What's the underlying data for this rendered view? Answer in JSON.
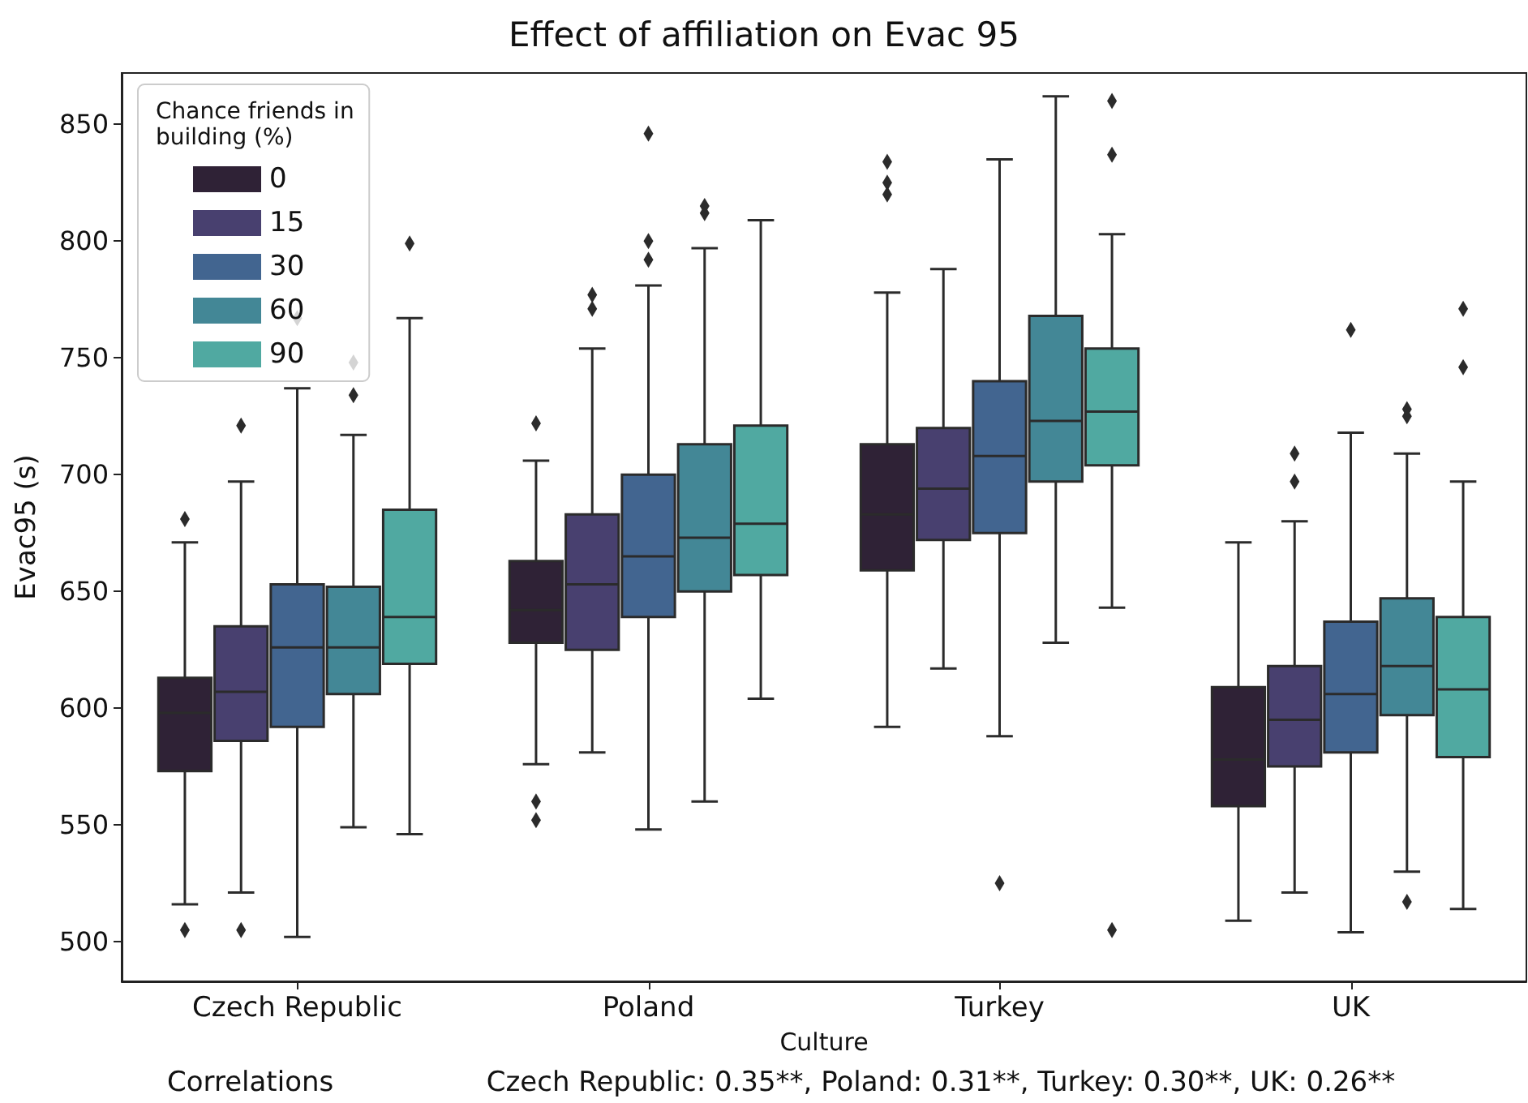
{
  "chart_data": {
    "type": "box",
    "title": "Effect of affiliation on Evac 95",
    "xlabel": "Culture",
    "ylabel": "Evac95 (s)",
    "legend_title": "Chance friends in building (%)",
    "legend": "top left",
    "grid": false,
    "categories": [
      "Czech Republic",
      "Poland",
      "Turkey",
      "UK"
    ],
    "ylim": [
      483,
      872
    ],
    "yticks": [
      500,
      550,
      600,
      650,
      700,
      750,
      800,
      850
    ],
    "annotations": [
      "Correlations",
      "Czech Republic: 0.35**, Poland: 0.31**, Turkey: 0.30**, UK: 0.26**"
    ],
    "series": [
      {
        "name": "0",
        "color": "#2f2236",
        "boxes": [
          {
            "low": 516,
            "q1": 573,
            "median": 598,
            "q3": 613,
            "high": 671,
            "outliers": [
              681,
              505
            ]
          },
          {
            "low": 576,
            "q1": 628,
            "median": 642,
            "q3": 663,
            "high": 706,
            "outliers": [
              722,
              560,
              552
            ]
          },
          {
            "low": 592,
            "q1": 659,
            "median": 683,
            "q3": 713,
            "high": 778,
            "outliers": [
              834,
              825,
              820
            ]
          },
          {
            "low": 509,
            "q1": 558,
            "median": 578,
            "q3": 609,
            "high": 671
          }
        ]
      },
      {
        "name": "15",
        "color": "#48406f",
        "boxes": [
          {
            "low": 521,
            "q1": 586,
            "median": 607,
            "q3": 635,
            "high": 697,
            "outliers": [
              721,
              505
            ]
          },
          {
            "low": 581,
            "q1": 625,
            "median": 653,
            "q3": 683,
            "high": 754,
            "outliers": [
              777,
              771
            ]
          },
          {
            "low": 617,
            "q1": 672,
            "median": 694,
            "q3": 720,
            "high": 788
          },
          {
            "low": 521,
            "q1": 575,
            "median": 595,
            "q3": 618,
            "high": 680,
            "outliers": [
              709,
              697
            ]
          }
        ]
      },
      {
        "name": "30",
        "color": "#426590",
        "boxes": [
          {
            "low": 502,
            "q1": 592,
            "median": 626,
            "q3": 653,
            "high": 737,
            "outliers": [
              767
            ]
          },
          {
            "low": 548,
            "q1": 639,
            "median": 665,
            "q3": 700,
            "high": 781,
            "outliers": [
              846,
              800,
              792
            ]
          },
          {
            "low": 588,
            "q1": 675,
            "median": 708,
            "q3": 740,
            "high": 835,
            "outliers": [
              525
            ]
          },
          {
            "low": 504,
            "q1": 581,
            "median": 606,
            "q3": 637,
            "high": 718,
            "outliers": [
              762
            ]
          }
        ]
      },
      {
        "name": "60",
        "color": "#438796",
        "boxes": [
          {
            "low": 549,
            "q1": 606,
            "median": 626,
            "q3": 652,
            "high": 717,
            "outliers": [
              748,
              734
            ]
          },
          {
            "low": 560,
            "q1": 650,
            "median": 673,
            "q3": 713,
            "high": 797,
            "outliers": [
              815,
              812
            ]
          },
          {
            "low": 628,
            "q1": 697,
            "median": 723,
            "q3": 768,
            "high": 862
          },
          {
            "low": 530,
            "q1": 597,
            "median": 618,
            "q3": 647,
            "high": 709,
            "outliers": [
              728,
              725,
              517
            ]
          }
        ]
      },
      {
        "name": "90",
        "color": "#50a9a1",
        "boxes": [
          {
            "low": 546,
            "q1": 619,
            "median": 639,
            "q3": 685,
            "high": 767,
            "outliers": [
              799
            ]
          },
          {
            "low": 604,
            "q1": 657,
            "median": 679,
            "q3": 721,
            "high": 809
          },
          {
            "low": 643,
            "q1": 704,
            "median": 727,
            "q3": 754,
            "high": 803,
            "outliers": [
              860,
              837,
              505
            ]
          },
          {
            "low": 514,
            "q1": 579,
            "median": 608,
            "q3": 639,
            "high": 697,
            "outliers": [
              771,
              746
            ]
          }
        ]
      }
    ]
  }
}
